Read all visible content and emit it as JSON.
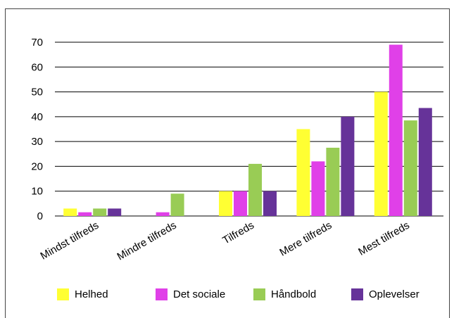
{
  "chart_data": {
    "type": "bar",
    "categories": [
      "Mindst tilfreds",
      "Mindre tilfreds",
      "Tilfreds",
      "Mere tilfreds",
      "Mest tilfreds"
    ],
    "series": [
      {
        "name": "Helhed",
        "color": "#ffff33",
        "values": [
          3,
          0,
          10,
          35,
          50
        ]
      },
      {
        "name": "Det sociale",
        "color": "#e040e8",
        "values": [
          1.5,
          1.5,
          10,
          22,
          69
        ]
      },
      {
        "name": "Håndbold",
        "color": "#99cc55",
        "values": [
          3,
          9,
          21,
          27.5,
          38.5
        ]
      },
      {
        "name": "Oplevelser",
        "color": "#663399",
        "values": [
          3,
          0,
          10,
          40,
          43.5
        ]
      }
    ],
    "yticks": [
      "0",
      "10",
      "20",
      "30",
      "40",
      "50",
      "60",
      "70"
    ],
    "ylim": [
      0,
      70
    ],
    "grid": true,
    "legend_position": "bottom"
  }
}
